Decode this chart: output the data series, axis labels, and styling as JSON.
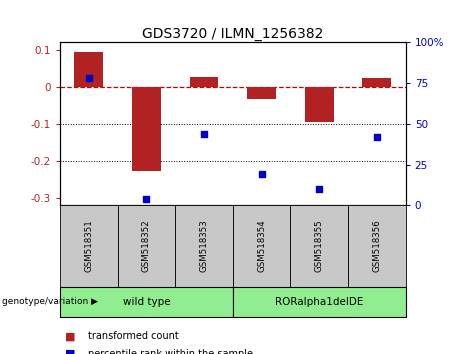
{
  "title": "GDS3720 / ILMN_1256382",
  "samples": [
    "GSM518351",
    "GSM518352",
    "GSM518353",
    "GSM518354",
    "GSM518355",
    "GSM518356"
  ],
  "red_bars": [
    0.093,
    -0.228,
    0.027,
    -0.032,
    -0.095,
    0.023
  ],
  "blue_dots_pct": [
    78,
    4,
    44,
    19,
    10,
    42
  ],
  "ylim_left": [
    -0.32,
    0.12
  ],
  "ylim_right": [
    0,
    100
  ],
  "y_ticks_left": [
    0.1,
    0.0,
    -0.1,
    -0.2,
    -0.3
  ],
  "y_ticks_right": [
    100,
    75,
    50,
    25,
    0
  ],
  "group_info": [
    {
      "start": 0,
      "end": 2,
      "label": "wild type",
      "color": "#90EE90"
    },
    {
      "start": 3,
      "end": 5,
      "label": "RORalpha1delDE",
      "color": "#90EE90"
    }
  ],
  "group_label": "genotype/variation",
  "legend_red": "transformed count",
  "legend_blue": "percentile rank within the sample",
  "bar_color": "#B22222",
  "dot_color": "#0000CD",
  "zero_line_color": "#CC0000",
  "background_color": "#FFFFFF",
  "sample_box_color": "#C8C8C8",
  "title_fontsize": 10,
  "tick_fontsize": 7.5,
  "label_fontsize": 7.5,
  "bar_width": 0.5
}
